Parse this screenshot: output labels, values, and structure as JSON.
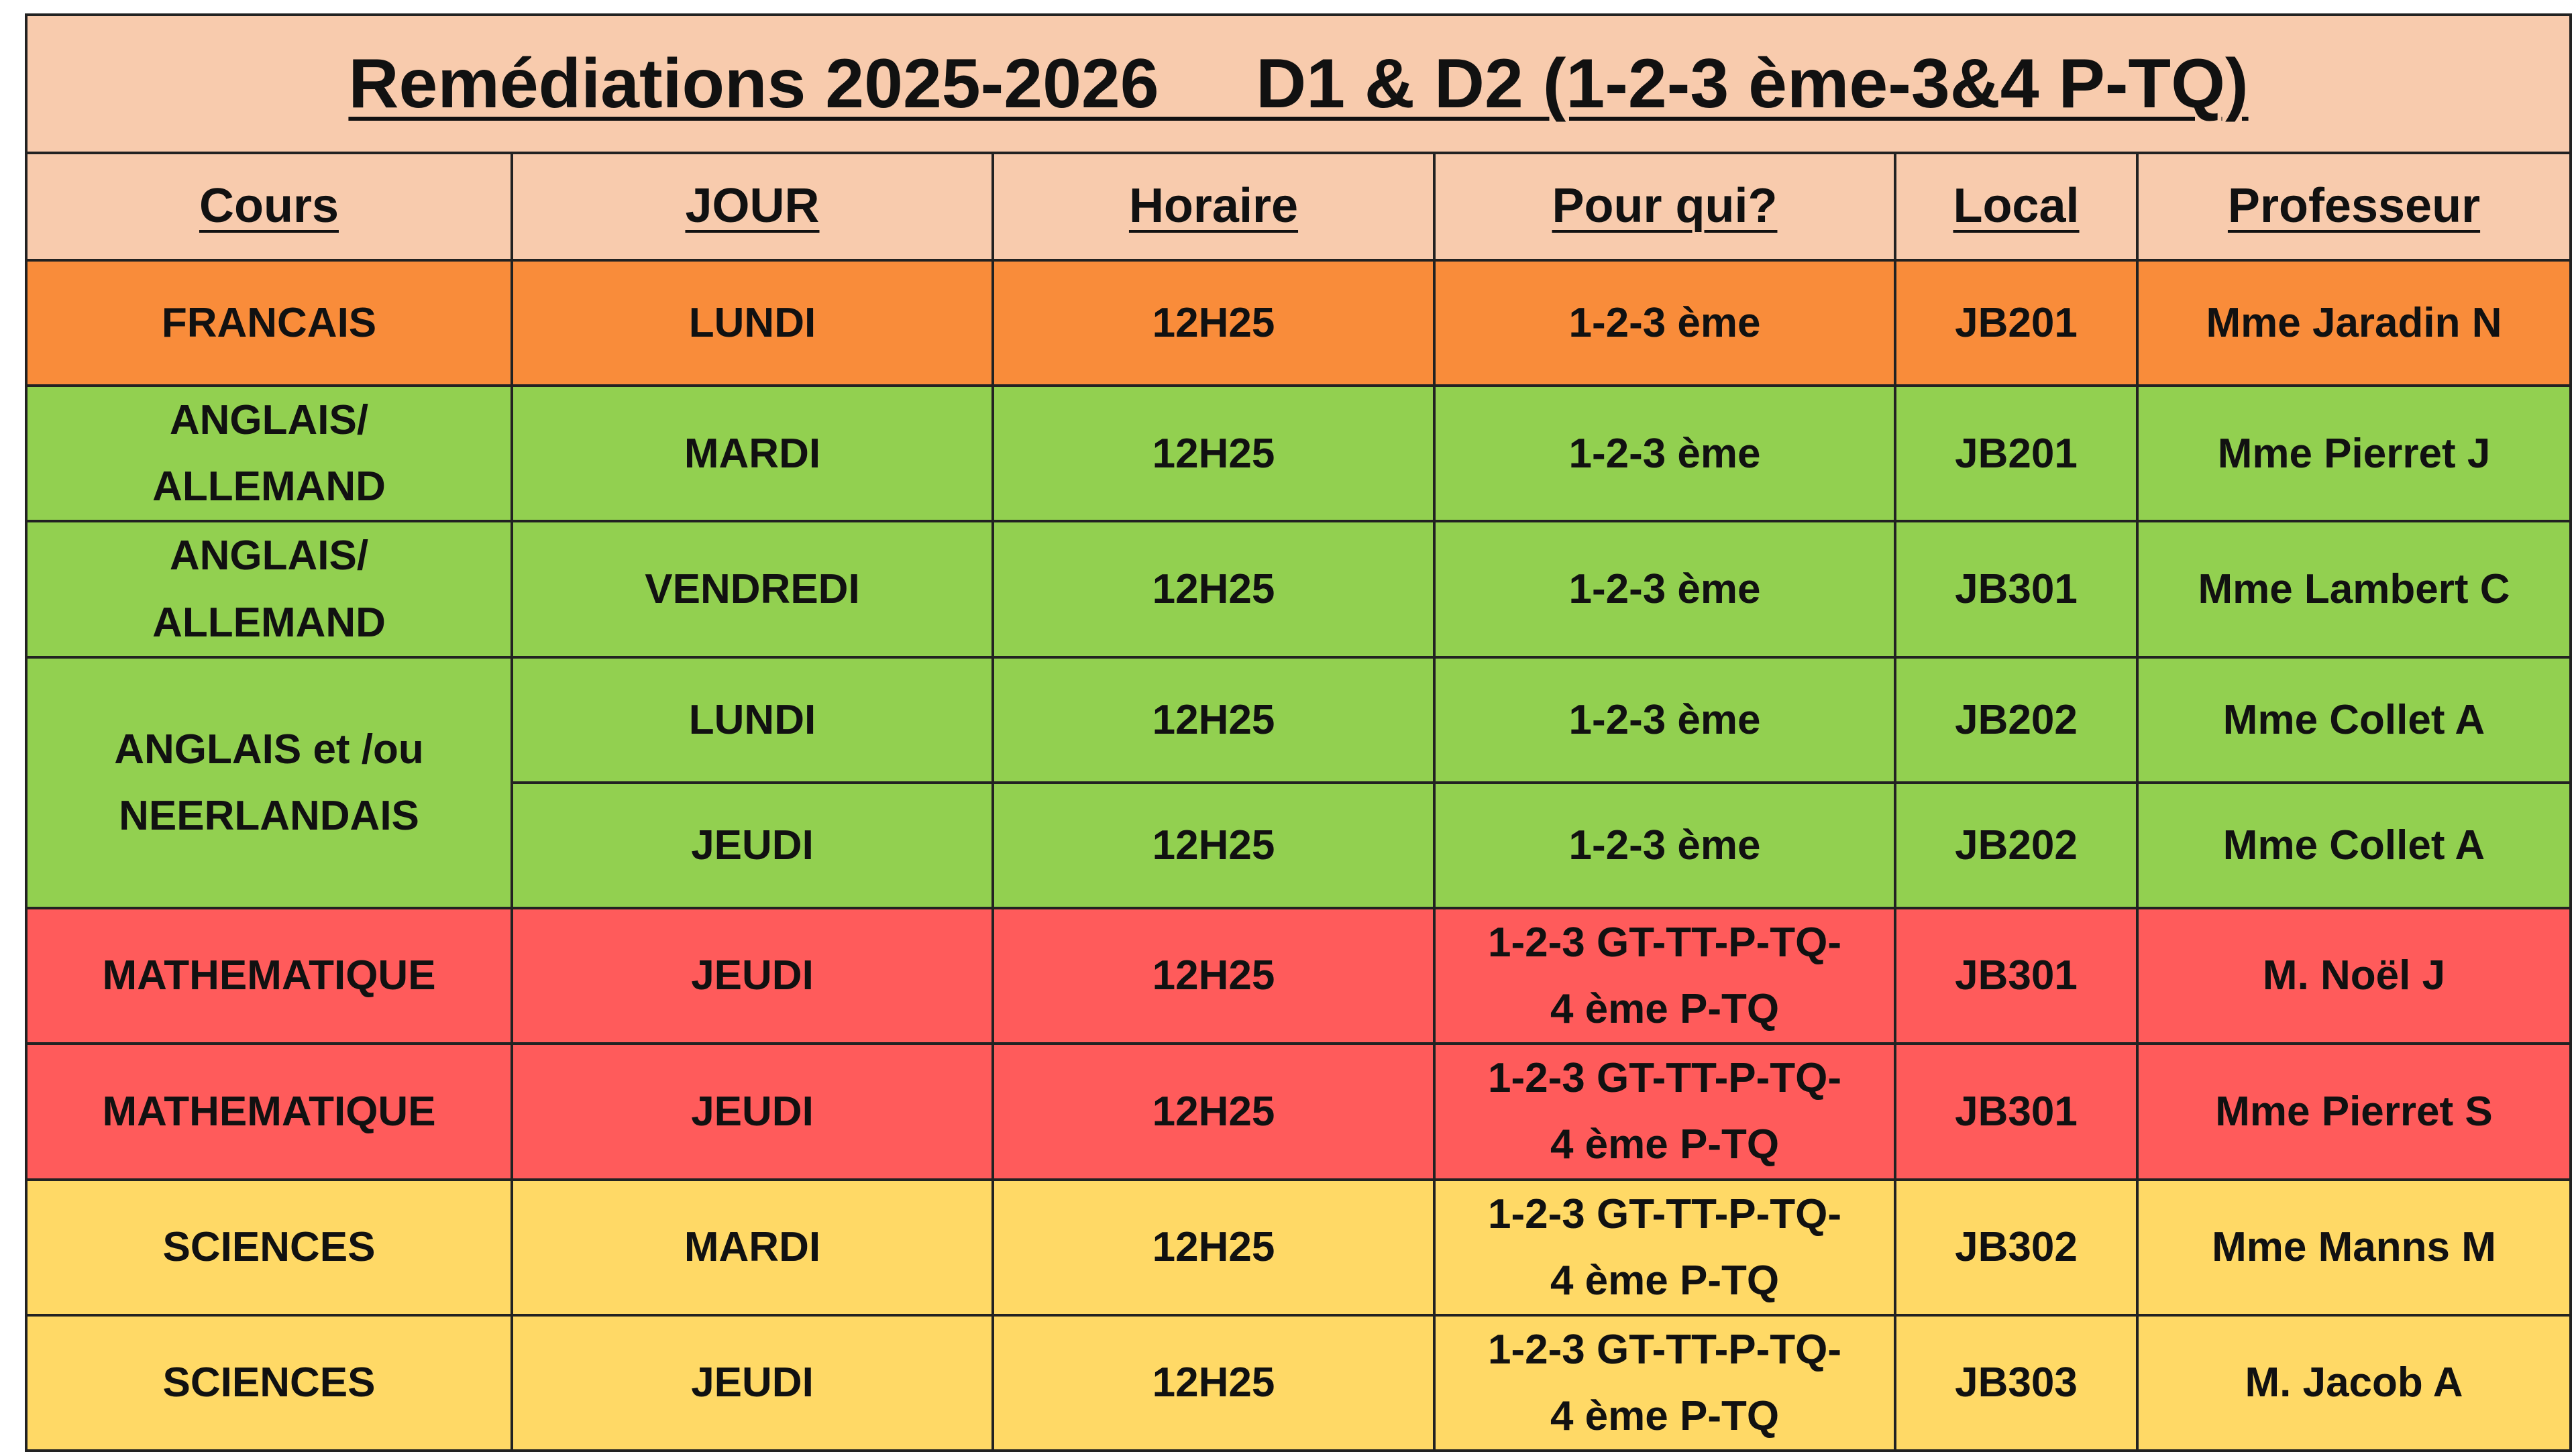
{
  "title": "Remédiations 2025-2026     D1 & D2 (1-2-3 ème-3&4 P-TQ)",
  "headers": [
    "Cours",
    "JOUR",
    "Horaire",
    "Pour qui?",
    "Local",
    "Professeur"
  ],
  "groups": [
    {
      "cours": "FRANCAIS",
      "color": "#f98c3a",
      "sessions": [
        [
          "LUNDI",
          "12H25",
          "1-2-3 ème",
          "JB201",
          "Mme Jaradin N"
        ]
      ]
    },
    {
      "cours": "ANGLAIS/\nALLEMAND",
      "color": "#92d050",
      "sessions": [
        [
          "MARDI",
          "12H25",
          "1-2-3 ème",
          "JB201",
          "Mme Pierret J"
        ]
      ]
    },
    {
      "cours": "ANGLAIS/\nALLEMAND",
      "color": "#92d050",
      "sessions": [
        [
          "VENDREDI",
          "12H25",
          "1-2-3 ème",
          "JB301",
          "Mme Lambert C"
        ]
      ]
    },
    {
      "cours": "ANGLAIS et  /ou\nNEERLANDAIS",
      "color": "#92d050",
      "sessions": [
        [
          "LUNDI",
          "12H25",
          "1-2-3 ème",
          "JB202",
          "Mme Collet A"
        ],
        [
          "JEUDI",
          "12H25",
          "1-2-3 ème",
          "JB202",
          "Mme Collet A"
        ]
      ]
    },
    {
      "cours": "MATHEMATIQUE",
      "color": "#ff5b5b",
      "sessions": [
        [
          "JEUDI",
          "12H25",
          "1-2-3 GT-TT-P-TQ-\n4 ème P-TQ",
          "JB301",
          "M. Noël J"
        ]
      ]
    },
    {
      "cours": "MATHEMATIQUE",
      "color": "#ff5b5b",
      "sessions": [
        [
          "JEUDI",
          "12H25",
          "1-2-3 GT-TT-P-TQ-\n4 ème P-TQ",
          "JB301",
          "Mme Pierret S"
        ]
      ]
    },
    {
      "cours": "SCIENCES",
      "color": "#ffd966",
      "sessions": [
        [
          "MARDI",
          "12H25",
          "1-2-3 GT-TT-P-TQ-\n4 ème P-TQ",
          "JB302",
          "Mme Manns M"
        ]
      ]
    },
    {
      "cours": "SCIENCES",
      "color": "#ffd966",
      "sessions": [
        [
          "JEUDI",
          "12H25",
          "1-2-3 GT-TT-P-TQ-\n4 ème P-TQ",
          "JB303",
          "M. Jacob A"
        ]
      ]
    }
  ]
}
